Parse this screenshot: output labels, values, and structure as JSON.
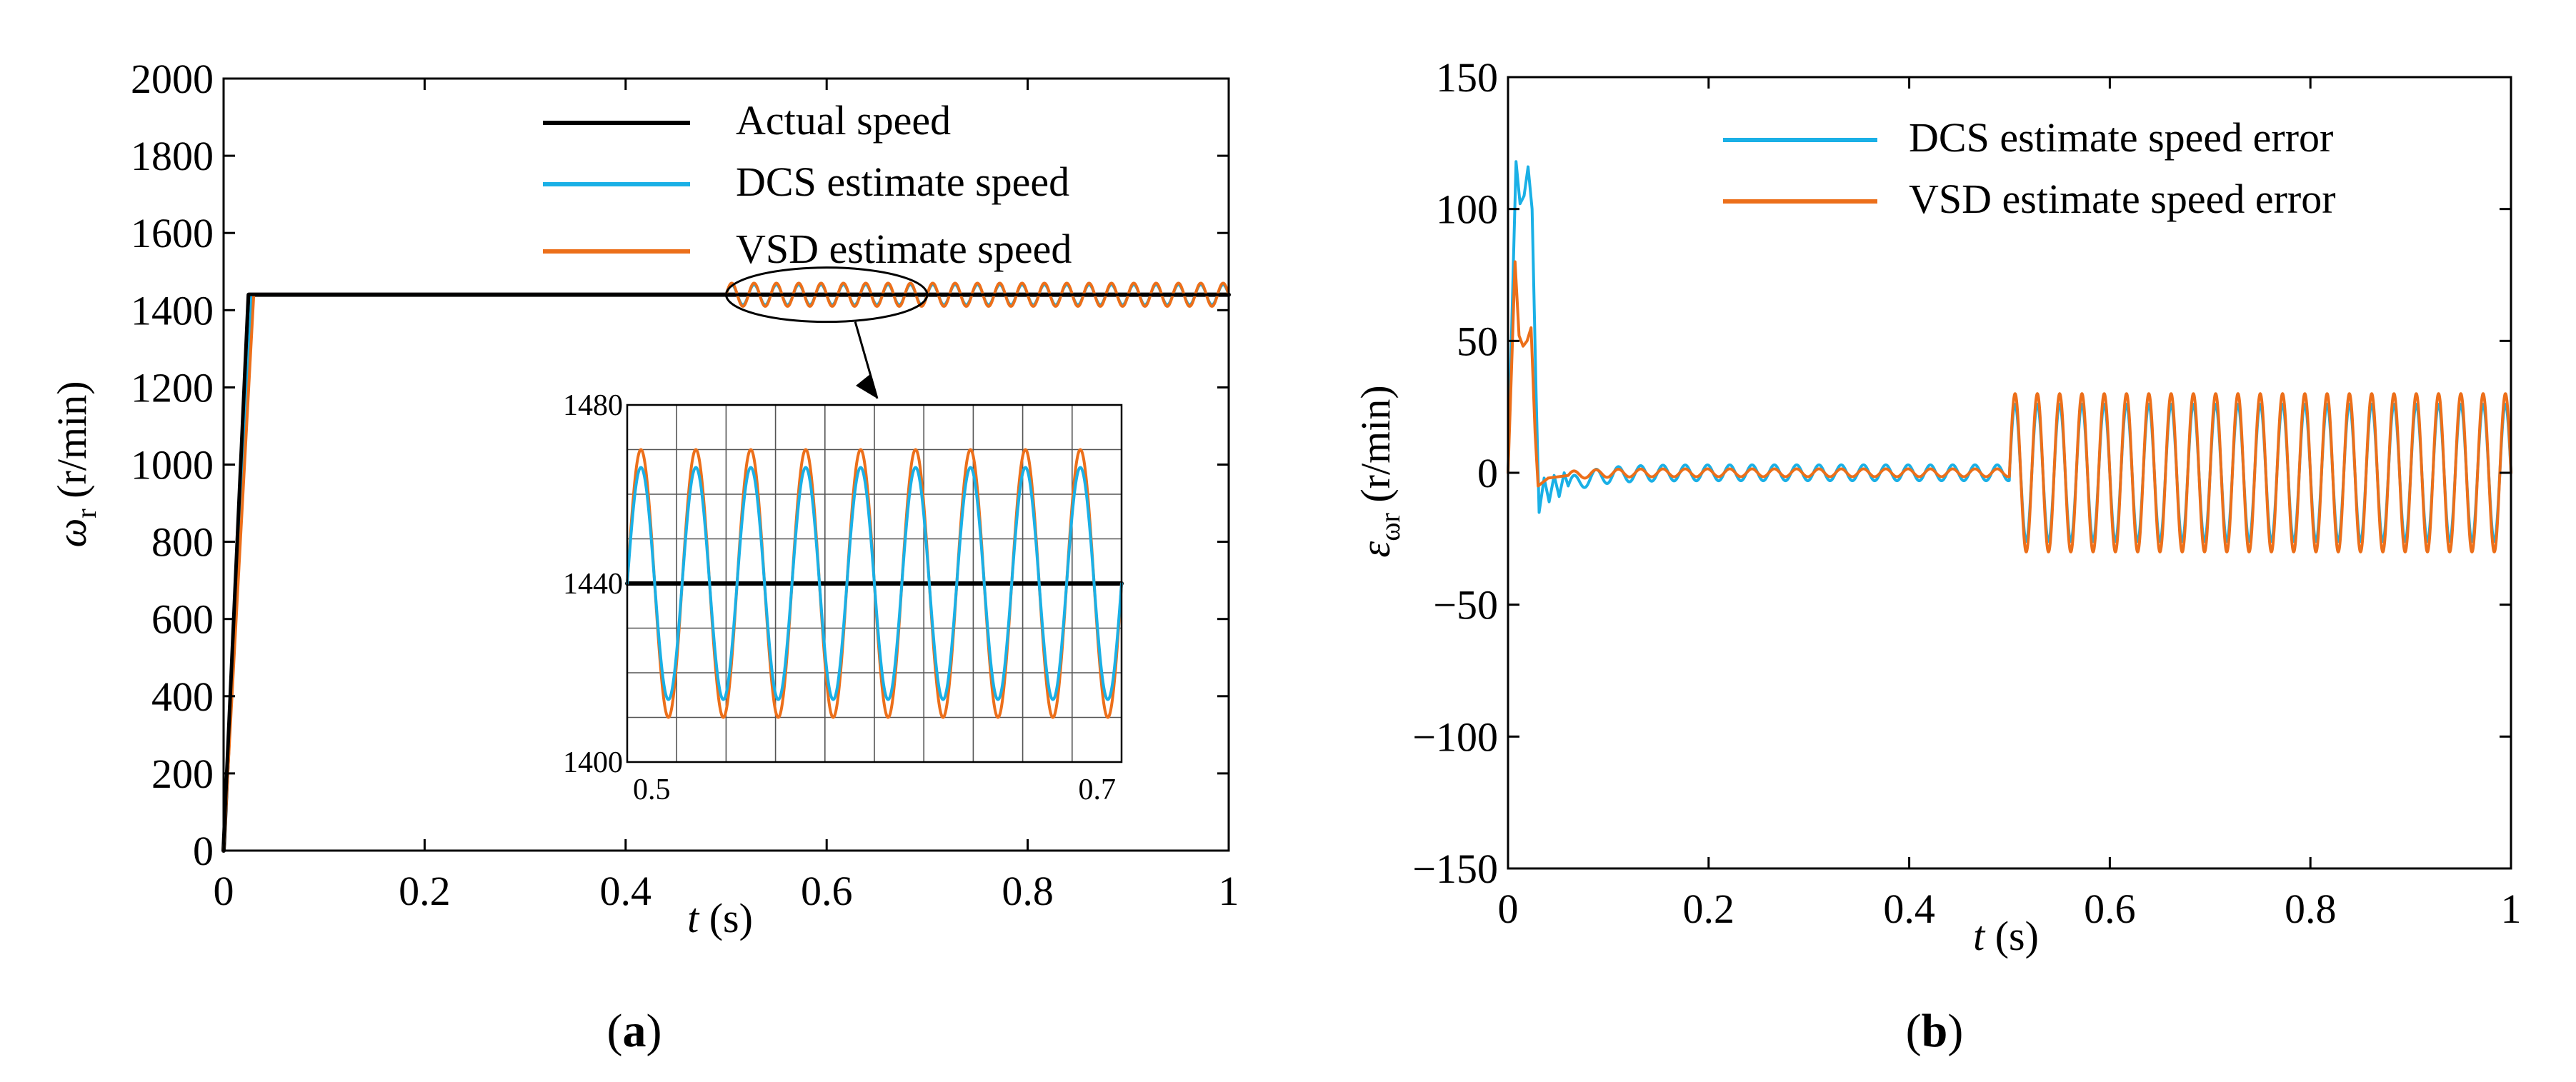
{
  "panels": [
    {
      "panel_label": "a",
      "xlabel_var": "t",
      "xlabel_unit": " (s)",
      "ylabel_var": "ω",
      "ylabel_sub": "r",
      "ylabel_unit": " (r/min)",
      "legend": [
        "Actual speed",
        "DCS estimate speed",
        "VSD estimate speed"
      ],
      "x_tick_labels": [
        "0",
        "0.2",
        "0.4",
        "0.6",
        "0.8",
        "1"
      ],
      "y_tick_labels": [
        "0",
        "200",
        "400",
        "600",
        "800",
        "1000",
        "1200",
        "1400",
        "1600",
        "1800",
        "2000"
      ],
      "inset_x_tick_labels": [
        "0.5",
        "0.7"
      ],
      "inset_y_tick_labels": [
        "1400",
        "1440",
        "1480"
      ]
    },
    {
      "panel_label": "b",
      "xlabel_var": "t",
      "xlabel_unit": " (s)",
      "ylabel_var": "ε",
      "ylabel_sub": "ωr",
      "ylabel_unit": " (r/min)",
      "legend": [
        "DCS estimate speed error",
        "VSD estimate speed error"
      ],
      "x_tick_labels": [
        "0",
        "0.2",
        "0.4",
        "0.6",
        "0.8",
        "1"
      ],
      "y_tick_labels": [
        "−150",
        "−100",
        "−50",
        "0",
        "50",
        "100",
        "150"
      ]
    }
  ],
  "colors": {
    "actual": "#000000",
    "dcs": "#1ab0e6",
    "vsd": "#ec6f1a"
  },
  "chart_data": [
    {
      "type": "line",
      "panel": "a",
      "xlabel": "t (s)",
      "ylabel": "ωr (r/min)",
      "xlim": [
        0,
        1
      ],
      "ylim": [
        0,
        2000
      ],
      "x_ticks": [
        0,
        0.2,
        0.4,
        0.6,
        0.8,
        1
      ],
      "y_ticks": [
        0,
        200,
        400,
        600,
        800,
        1000,
        1200,
        1400,
        1600,
        1800,
        2000
      ],
      "legend_position": "top-right",
      "series": [
        {
          "name": "Actual speed",
          "color_key": "actual",
          "startup_end_s": 0.025,
          "steady_value": 1440,
          "oscillation": null
        },
        {
          "name": "DCS estimate speed",
          "color_key": "dcs",
          "startup_end_s": 0.028,
          "steady_value": 1440,
          "oscillation": {
            "start_s": 0.5,
            "amplitude": 26,
            "frequency_hz": 45
          }
        },
        {
          "name": "VSD estimate speed",
          "color_key": "vsd",
          "startup_end_s": 0.03,
          "steady_value": 1440,
          "oscillation": {
            "start_s": 0.5,
            "amplitude": 30,
            "frequency_hz": 45
          }
        }
      ],
      "inset": {
        "xlim": [
          0.5,
          0.7
        ],
        "ylim": [
          1400,
          1480
        ],
        "x_ticks": [
          0.5,
          0.7
        ],
        "y_ticks": [
          1400,
          1440,
          1480
        ],
        "grid": true,
        "zoom_source_xlim": [
          0.5,
          0.7
        ]
      }
    },
    {
      "type": "line",
      "panel": "b",
      "xlabel": "t (s)",
      "ylabel": "εωr (r/min)",
      "xlim": [
        0,
        1
      ],
      "ylim": [
        -150,
        150
      ],
      "x_ticks": [
        0,
        0.2,
        0.4,
        0.6,
        0.8,
        1
      ],
      "y_ticks": [
        -150,
        -100,
        -50,
        0,
        50,
        100,
        150
      ],
      "legend_position": "top-right",
      "series": [
        {
          "name": "DCS estimate speed error",
          "color_key": "dcs",
          "startup_points": [
            [
              0,
              0
            ],
            [
              0.004,
              60
            ],
            [
              0.008,
              118
            ],
            [
              0.012,
              102
            ],
            [
              0.016,
              105
            ],
            [
              0.02,
              116
            ],
            [
              0.024,
              100
            ],
            [
              0.028,
              30
            ],
            [
              0.031,
              -15
            ],
            [
              0.036,
              -2
            ],
            [
              0.041,
              -11
            ],
            [
              0.046,
              -1
            ],
            [
              0.051,
              -9
            ],
            [
              0.056,
              0
            ],
            [
              0.06,
              -5
            ]
          ],
          "small_ripple": {
            "start_s": 0.06,
            "end_s": 0.5,
            "amplitude": 3,
            "frequency_hz": 45
          },
          "oscillation": {
            "start_s": 0.5,
            "end_s": 1.0,
            "amplitude": 26,
            "frequency_hz": 45
          }
        },
        {
          "name": "VSD estimate speed error",
          "color_key": "vsd",
          "startup_points": [
            [
              0,
              0
            ],
            [
              0.004,
              45
            ],
            [
              0.007,
              80
            ],
            [
              0.011,
              52
            ],
            [
              0.015,
              48
            ],
            [
              0.019,
              50
            ],
            [
              0.023,
              55
            ],
            [
              0.027,
              15
            ],
            [
              0.03,
              -5
            ],
            [
              0.04,
              -2
            ],
            [
              0.06,
              -1
            ]
          ],
          "small_ripple": {
            "start_s": 0.06,
            "end_s": 0.5,
            "amplitude": 1.5,
            "frequency_hz": 45
          },
          "oscillation": {
            "start_s": 0.5,
            "end_s": 1.0,
            "amplitude": 30,
            "frequency_hz": 45
          }
        }
      ]
    }
  ]
}
